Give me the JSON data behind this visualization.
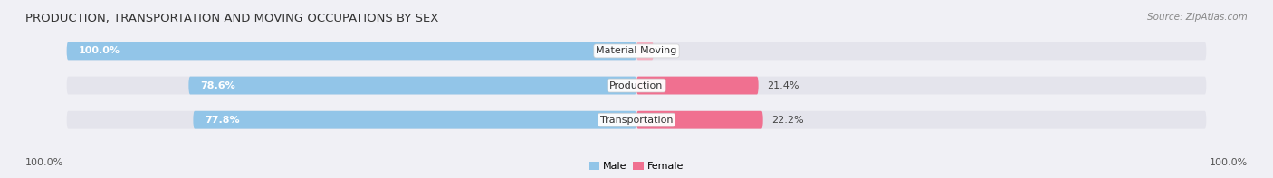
{
  "title": "PRODUCTION, TRANSPORTATION AND MOVING OCCUPATIONS BY SEX",
  "source": "Source: ZipAtlas.com",
  "categories": [
    "Material Moving",
    "Production",
    "Transportation"
  ],
  "male_values": [
    100.0,
    78.6,
    77.8
  ],
  "female_values": [
    0.0,
    21.4,
    22.2
  ],
  "male_color": "#92c5e8",
  "female_color": "#f07090",
  "female_light_color": "#f4afc0",
  "bar_bg_color": "#e4e4ec",
  "male_label": "Male",
  "female_label": "Female",
  "title_fontsize": 9.5,
  "source_fontsize": 7.5,
  "value_fontsize": 8,
  "cat_fontsize": 8,
  "axis_label_fontsize": 8,
  "left_axis_label": "100.0%",
  "right_axis_label": "100.0%",
  "background_color": "#f0f0f5"
}
